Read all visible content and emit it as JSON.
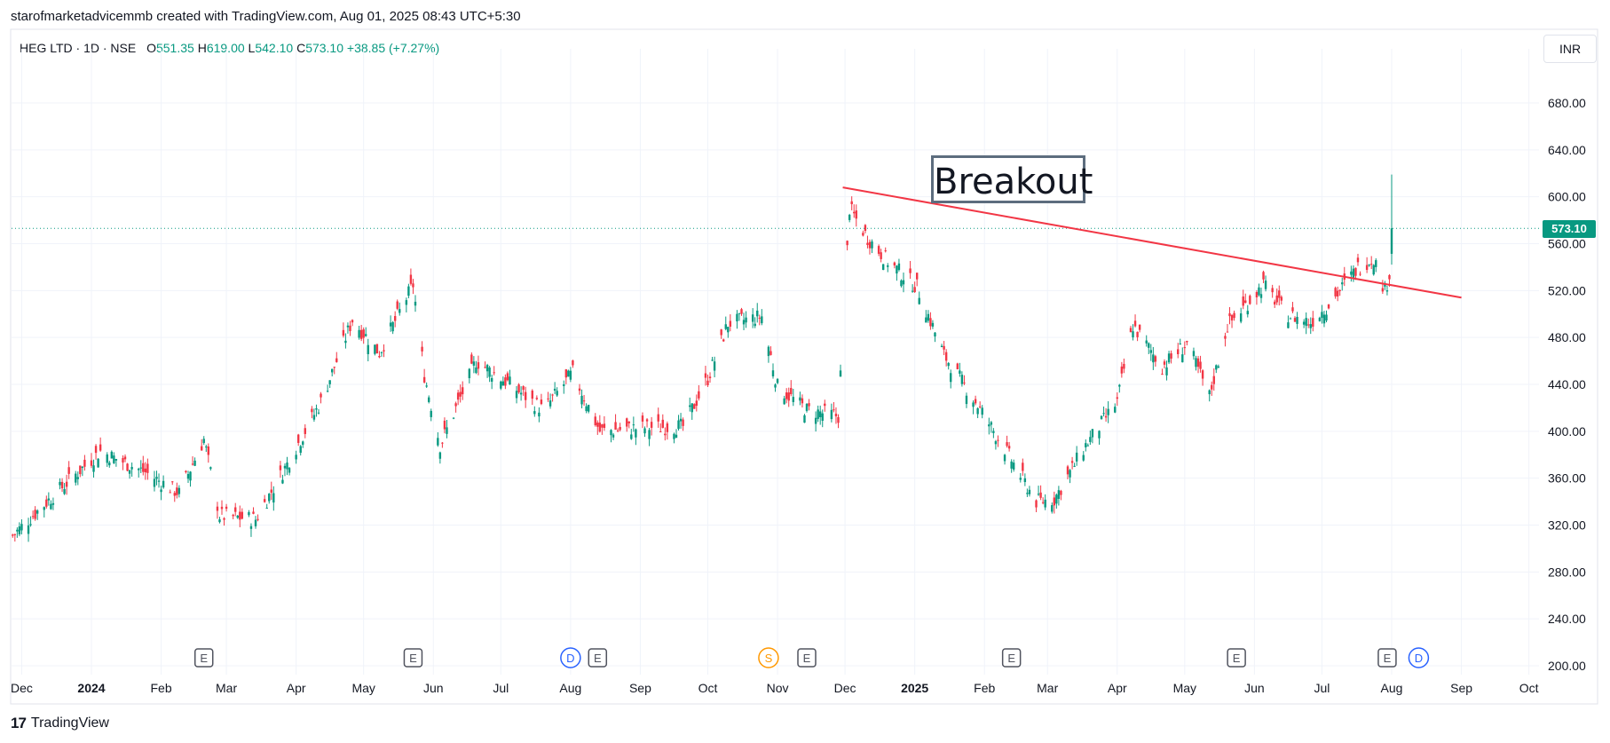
{
  "attribution": "starofmarketadvicemmb created with TradingView.com, Aug 01, 2025 08:43 UTC+5:30",
  "legend": {
    "symbol": "HEG LTD · 1D · NSE",
    "open_label": "O",
    "open": "551.35",
    "high_label": "H",
    "high": "619.00",
    "low_label": "L",
    "low": "542.10",
    "close_label": "C",
    "close": "573.10",
    "change": "+38.85 (+7.27%)"
  },
  "currency": "INR",
  "brand": "TradingView",
  "last_price_tag": "573.10",
  "annotation": "Breakout",
  "colors": {
    "up": "#089981",
    "down": "#f23645",
    "trendline": "#f23645",
    "grid": "#f0f3fa",
    "accent": "#089981"
  },
  "chart_data": {
    "type": "candlestick",
    "title": "HEG LTD · 1D · NSE",
    "ylim": [
      200,
      700
    ],
    "y_ticks": [
      "200.00",
      "240.00",
      "280.00",
      "320.00",
      "360.00",
      "400.00",
      "440.00",
      "480.00",
      "520.00",
      "560.00",
      "600.00",
      "640.00",
      "680.00"
    ],
    "x_ticks": [
      "Dec",
      "2024",
      "Feb",
      "Mar",
      "Apr",
      "May",
      "Jun",
      "Jul",
      "Aug",
      "Sep",
      "Oct",
      "Nov",
      "Dec",
      "2025",
      "Feb",
      "Mar",
      "Apr",
      "May",
      "Jun",
      "Jul",
      "Aug",
      "Sep",
      "Oct"
    ],
    "x_range": [
      "2023-11-25",
      "2025-10-05"
    ],
    "series_approx_close": [
      {
        "date": "2023-11-27",
        "close": 311
      },
      {
        "date": "2023-12-15",
        "close": 345
      },
      {
        "date": "2024-01-05",
        "close": 383
      },
      {
        "date": "2024-01-25",
        "close": 365
      },
      {
        "date": "2024-02-09",
        "close": 347
      },
      {
        "date": "2024-02-20",
        "close": 393
      },
      {
        "date": "2024-02-27",
        "close": 328
      },
      {
        "date": "2024-03-14",
        "close": 325
      },
      {
        "date": "2024-03-28",
        "close": 372
      },
      {
        "date": "2024-04-12",
        "close": 425
      },
      {
        "date": "2024-04-26",
        "close": 495
      },
      {
        "date": "2024-05-08",
        "close": 467
      },
      {
        "date": "2024-05-23",
        "close": 525
      },
      {
        "date": "2024-05-28",
        "close": 448
      },
      {
        "date": "2024-06-04",
        "close": 388
      },
      {
        "date": "2024-06-20",
        "close": 460
      },
      {
        "date": "2024-07-05",
        "close": 440
      },
      {
        "date": "2024-07-20",
        "close": 418
      },
      {
        "date": "2024-08-02",
        "close": 450
      },
      {
        "date": "2024-08-14",
        "close": 400
      },
      {
        "date": "2024-09-01",
        "close": 403
      },
      {
        "date": "2024-09-20",
        "close": 404
      },
      {
        "date": "2024-10-01",
        "close": 445
      },
      {
        "date": "2024-10-10",
        "close": 492
      },
      {
        "date": "2024-10-25",
        "close": 498
      },
      {
        "date": "2024-11-01",
        "close": 438
      },
      {
        "date": "2024-11-14",
        "close": 418
      },
      {
        "date": "2024-11-28",
        "close": 413
      },
      {
        "date": "2024-12-03",
        "close": 590
      },
      {
        "date": "2024-12-11",
        "close": 565
      },
      {
        "date": "2024-12-20",
        "close": 545
      },
      {
        "date": "2025-01-02",
        "close": 523
      },
      {
        "date": "2025-01-14",
        "close": 465
      },
      {
        "date": "2025-01-28",
        "close": 425
      },
      {
        "date": "2025-02-10",
        "close": 385
      },
      {
        "date": "2025-02-24",
        "close": 340
      },
      {
        "date": "2025-03-04",
        "close": 342
      },
      {
        "date": "2025-03-18",
        "close": 388
      },
      {
        "date": "2025-04-01",
        "close": 425
      },
      {
        "date": "2025-04-08",
        "close": 490
      },
      {
        "date": "2025-04-21",
        "close": 455
      },
      {
        "date": "2025-05-02",
        "close": 475
      },
      {
        "date": "2025-05-12",
        "close": 430
      },
      {
        "date": "2025-05-20",
        "close": 490
      },
      {
        "date": "2025-06-05",
        "close": 525
      },
      {
        "date": "2025-06-15",
        "close": 500
      },
      {
        "date": "2025-06-26",
        "close": 493
      },
      {
        "date": "2025-07-05",
        "close": 510
      },
      {
        "date": "2025-07-17",
        "close": 540
      },
      {
        "date": "2025-07-24",
        "close": 548
      },
      {
        "date": "2025-07-29",
        "close": 520
      },
      {
        "date": "2025-07-31",
        "close": 534.25
      },
      {
        "date": "2025-08-01",
        "open": 551.35,
        "high": 619.0,
        "low": 542.1,
        "close": 573.1
      }
    ],
    "trendline": {
      "from": {
        "date": "2024-11-30",
        "price": 608
      },
      "to": {
        "date": "2025-09-01",
        "price": 514
      },
      "color": "#f23645"
    },
    "event_markers": [
      {
        "date": "2024-02-20",
        "label": "E"
      },
      {
        "date": "2024-05-23",
        "label": "E"
      },
      {
        "date": "2024-08-01",
        "label": "D"
      },
      {
        "date": "2024-08-13",
        "label": "E"
      },
      {
        "date": "2024-10-28",
        "label": "S"
      },
      {
        "date": "2024-11-14",
        "label": "E"
      },
      {
        "date": "2025-02-13",
        "label": "E"
      },
      {
        "date": "2025-05-24",
        "label": "E"
      },
      {
        "date": "2025-07-30",
        "label": "E"
      },
      {
        "date": "2025-08-13",
        "label": "D"
      }
    ]
  }
}
